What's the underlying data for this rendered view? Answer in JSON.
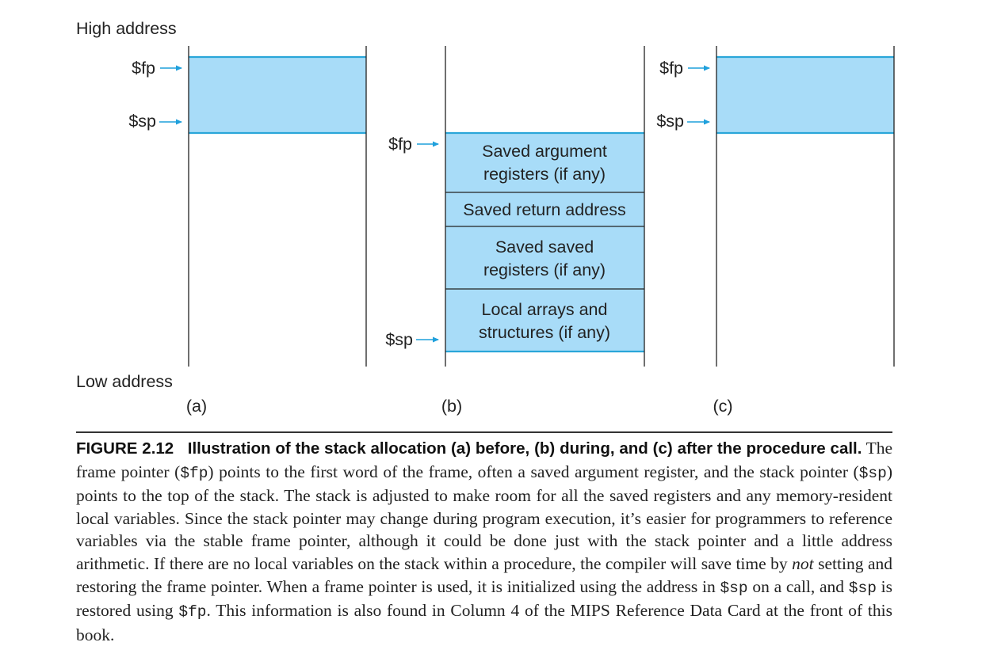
{
  "labels": {
    "high_address": "High address",
    "low_address": "Low address",
    "fp": "$fp",
    "sp": "$sp",
    "panel_a": "(a)",
    "panel_b": "(b)",
    "panel_c": "(c)"
  },
  "frame_blocks": [
    [
      "Saved argument",
      "registers (if any)"
    ],
    [
      "Saved return address"
    ],
    [
      "Saved saved",
      "registers (if any)"
    ],
    [
      "Local arrays and",
      "structures (if any)"
    ]
  ],
  "caption": {
    "figure_label": "FIGURE 2.12",
    "title": "Illustration of the stack allocation (a) before, (b) during, and (c) after the procedure call.",
    "p1": " The frame pointer (",
    "fp_code": "$fp",
    "p2": ") points to the first word of the frame, often a saved argument register, and the stack pointer (",
    "sp_code": "$sp",
    "p3": ") points to the top of the stack. The stack is adjusted to make room for all the saved registers and any memory-resident local variables. Since the stack pointer may change during program execution, it’s easier for programmers to reference variables via the stable frame pointer, although it could be done just with the stack pointer and a little address arithmetic. If there are no local variables on the stack within a procedure, the compiler will save time by ",
    "emph": "not",
    "p4": " setting and restoring the frame pointer. When a frame pointer is used, it is initialized using the address in ",
    "sp_code2": "$sp",
    "p5": " on a call, and ",
    "sp_code3": "$sp",
    "p6": " is restored using ",
    "fp_code2": "$fp",
    "p7": ". This information is also found in Column 4 of the MIPS Reference Data Card at the front of this book."
  },
  "colors": {
    "fill": "#a8dcf8",
    "edge": "#2aa6d9",
    "arrow": "#1fa0dc",
    "line": "#222222"
  }
}
